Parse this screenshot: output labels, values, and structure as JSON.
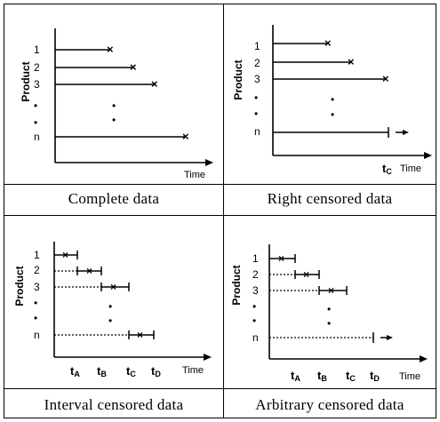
{
  "panels": [
    {
      "id": "complete",
      "caption": "Complete data",
      "y_axis_label": "Product",
      "x_axis_label": "Time",
      "row_labels": [
        "1",
        "2",
        "3",
        "n"
      ],
      "ellipsis": "•",
      "x_ticks": []
    },
    {
      "id": "right-censored",
      "caption": "Right censored data",
      "y_axis_label": "Product",
      "x_axis_label": "Time",
      "row_labels": [
        "1",
        "2",
        "3",
        "n"
      ],
      "ellipsis": "•",
      "x_ticks": [
        {
          "base": "t",
          "sub": "C"
        }
      ]
    },
    {
      "id": "interval-censored",
      "caption": "Interval censored data",
      "y_axis_label": "Product",
      "x_axis_label": "Time",
      "row_labels": [
        "1",
        "2",
        "3",
        "n"
      ],
      "ellipsis": "•",
      "x_ticks": [
        {
          "base": "t",
          "sub": "A"
        },
        {
          "base": "t",
          "sub": "B"
        },
        {
          "base": "t",
          "sub": "C"
        },
        {
          "base": "t",
          "sub": "D"
        }
      ]
    },
    {
      "id": "arbitrary-censored",
      "caption": "Arbitrary censored data",
      "y_axis_label": "Product",
      "x_axis_label": "Time",
      "row_labels": [
        "1",
        "2",
        "3",
        "n"
      ],
      "ellipsis": "•",
      "x_ticks": [
        {
          "base": "t",
          "sub": "A"
        },
        {
          "base": "t",
          "sub": "B"
        },
        {
          "base": "t",
          "sub": "C"
        },
        {
          "base": "t",
          "sub": "D"
        }
      ]
    }
  ],
  "colors": {
    "line": "#000000",
    "border": "#000000",
    "background": "#ffffff"
  }
}
